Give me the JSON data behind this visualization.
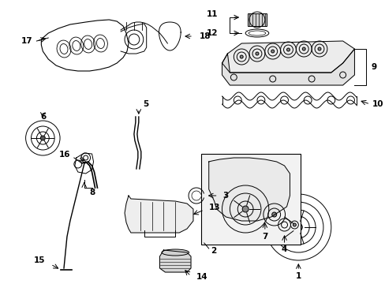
{
  "bg_color": "#ffffff",
  "lc": "#000000",
  "lw": 0.7,
  "fig_w": 4.89,
  "fig_h": 3.6,
  "dpi": 100
}
